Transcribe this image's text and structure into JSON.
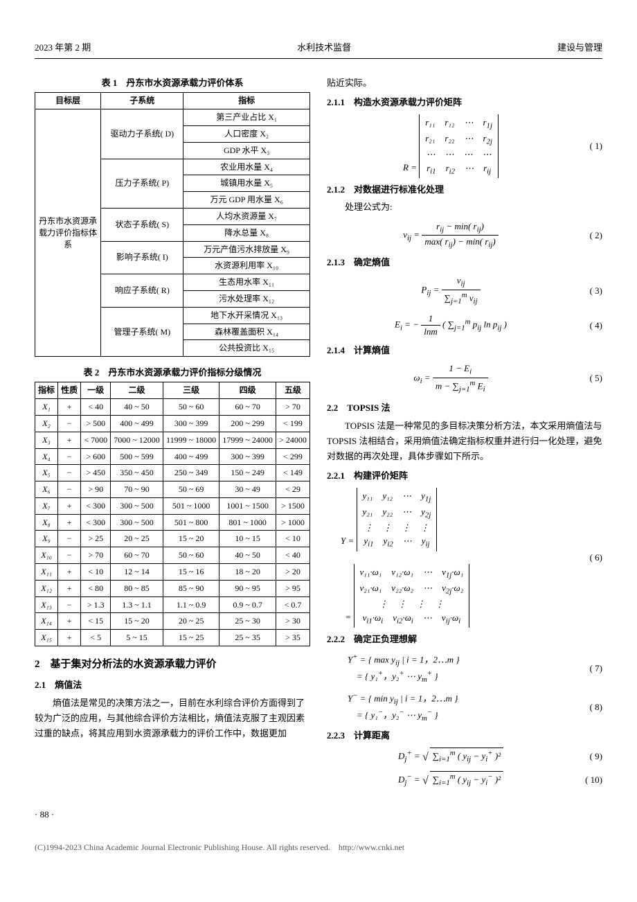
{
  "header": {
    "left": "2023 年第 2 期",
    "center": "水利技术监督",
    "right": "建设与管理"
  },
  "table1": {
    "caption": "表 1　丹东市水资源承载力评价体系",
    "headers": [
      "目标层",
      "子系统",
      "指标"
    ],
    "target": "丹东市水资源承载力评价指标体系",
    "groups": [
      {
        "sub": "驱动力子系统( D)",
        "rows": [
          "第三产业占比 X₁",
          "人口密度 X₂",
          "GDP 水平 X₃"
        ]
      },
      {
        "sub": "压力子系统( P)",
        "rows": [
          "农业用水量 X₄",
          "城镇用水量 X₅",
          "万元 GDP 用水量 X₆"
        ]
      },
      {
        "sub": "状态子系统( S)",
        "rows": [
          "人均水资源量 X₇",
          "降水总量 X₈"
        ]
      },
      {
        "sub": "影响子系统( I)",
        "rows": [
          "万元产值污水排放量 X₉",
          "水资源利用率 X₁₀"
        ]
      },
      {
        "sub": "响应子系统( R)",
        "rows": [
          "生态用水率 X₁₁",
          "污水处理率 X₁₂"
        ]
      },
      {
        "sub": "管理子系统( M)",
        "rows": [
          "地下水开采情况 X₁₃",
          "森林覆盖面积 X₁₄",
          "公共投资比 X₁₅"
        ]
      }
    ]
  },
  "table2": {
    "caption": "表 2　丹东市水资源承载力评价指标分级情况",
    "headers": [
      "指标",
      "性质",
      "一级",
      "二级",
      "三级",
      "四级",
      "五级"
    ],
    "rows": [
      [
        "X₁",
        "+",
        "< 40",
        "40 ~ 50",
        "50 ~ 60",
        "60 ~ 70",
        "> 70"
      ],
      [
        "X₂",
        "−",
        "> 500",
        "400 ~ 499",
        "300 ~ 399",
        "200 ~ 299",
        "< 199"
      ],
      [
        "X₃",
        "+",
        "< 7000",
        "7000 ~ 12000",
        "11999 ~ 18000",
        "17999 ~ 24000",
        "> 24000"
      ],
      [
        "X₄",
        "−",
        "> 600",
        "500 ~ 599",
        "400 ~ 499",
        "300 ~ 399",
        "< 299"
      ],
      [
        "X₅",
        "−",
        "> 450",
        "350 ~ 450",
        "250 ~ 349",
        "150 ~ 249",
        "< 149"
      ],
      [
        "X₆",
        "−",
        "> 90",
        "70 ~ 90",
        "50 ~ 69",
        "30 ~ 49",
        "< 29"
      ],
      [
        "X₇",
        "+",
        "< 300",
        "300 ~ 500",
        "501 ~ 1000",
        "1001 ~ 1500",
        "> 1500"
      ],
      [
        "X₈",
        "+",
        "< 300",
        "300 ~ 500",
        "501 ~ 800",
        "801 ~ 1000",
        "> 1000"
      ],
      [
        "X₉",
        "−",
        "> 25",
        "20 ~ 25",
        "15 ~ 20",
        "10 ~ 15",
        "< 10"
      ],
      [
        "X₁₀",
        "−",
        "> 70",
        "60 ~ 70",
        "50 ~ 60",
        "40 ~ 50",
        "< 40"
      ],
      [
        "X₁₁",
        "+",
        "< 10",
        "12 ~ 14",
        "15 ~ 16",
        "18 ~ 20",
        "> 20"
      ],
      [
        "X₁₂",
        "+",
        "< 80",
        "80 ~ 85",
        "85 ~ 90",
        "90 ~ 95",
        "> 95"
      ],
      [
        "X₁₃",
        "−",
        "> 1.3",
        "1.3 ~ 1.1",
        "1.1 ~ 0.9",
        "0.9 ~ 0.7",
        "< 0.7"
      ],
      [
        "X₁₄",
        "+",
        "< 15",
        "15 ~ 20",
        "20 ~ 25",
        "25 ~ 30",
        "> 30"
      ],
      [
        "X₁₅",
        "+",
        "< 5",
        "5 ~ 15",
        "15 ~ 25",
        "25 ~ 35",
        "> 35"
      ]
    ]
  },
  "section2": {
    "title": "2　基于集对分析法的水资源承载力评价",
    "s21": {
      "title": "2.1　熵值法",
      "p1": "熵值法是常见的决策方法之一，目前在水利综合评价方面得到了较为广泛的应用，与其他综合评价方法相比，熵值法克服了主观因素过重的缺点，将其应用到水资源承载力的评价工作中，数据更加",
      "cont": "贴近实际。",
      "s211": "2.1.1　构造水资源承载力评价矩阵",
      "s212": "2.1.2　对数据进行标准化处理",
      "s212_p": "处理公式为:",
      "s213": "2.1.3　确定熵值",
      "s214": "2.1.4　计算熵值"
    },
    "s22": {
      "title": "2.2　TOPSIS 法",
      "p1": "TOPSIS 法是一种常见的多目标决策分析方法，本文采用熵值法与 TOPSIS 法相结合，采用熵值法确定指标权重并进行归一化处理，避免对数据的再次处理，具体步骤如下所示。",
      "s221": "2.2.1　构建评价矩阵",
      "s222": "2.2.2　确定正负理想解",
      "s223": "2.2.3　计算距离"
    }
  },
  "equations": {
    "e1": "( 1)",
    "e2": "( 2)",
    "e3": "( 3)",
    "e4": "( 4)",
    "e5": "( 5)",
    "e6": "( 6)",
    "e7": "( 7)",
    "e8": "( 8)",
    "e9": "( 9)",
    "e10": "( 10)"
  },
  "page_num": "· 88 ·",
  "footer": "(C)1994-2023 China Academic Journal Electronic Publishing House. All rights reserved.　http://www.cnki.net"
}
